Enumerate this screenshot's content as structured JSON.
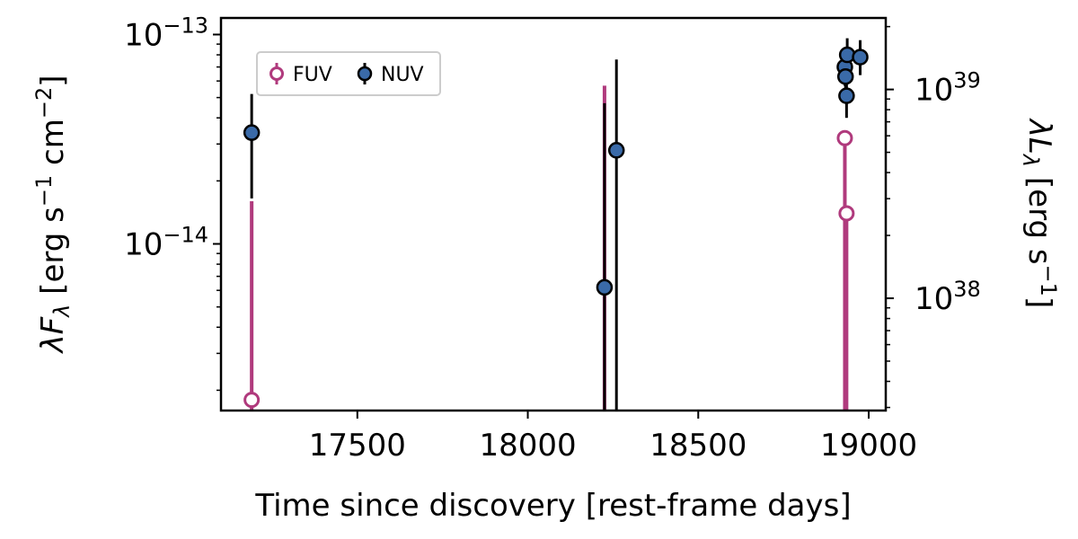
{
  "chart_data": {
    "type": "scatter",
    "xlabel": "Time since discovery [rest-frame days]",
    "ylabel_left": "λF_λ [erg s⁻¹ cm⁻²]",
    "ylabel_right": "λL_λ [erg s⁻¹]",
    "xlim": [
      17100,
      19050
    ],
    "ylim_left": [
      1.6e-15,
      1.2e-13
    ],
    "y_scale": "log",
    "ylim_right_approx": [
      2.9e+37,
      2.2e+39
    ],
    "x_ticks": [
      17500,
      18000,
      18500,
      19000
    ],
    "x_tick_labels": [
      "17500",
      "18000",
      "18500",
      "19000"
    ],
    "y_left_ticks": [
      {
        "base": "10",
        "exp": "−14",
        "value": 1e-14
      },
      {
        "base": "10",
        "exp": "−13",
        "value": 1e-13
      }
    ],
    "y_right_ticks": [
      {
        "base": "10",
        "exp": "38",
        "value": 1e+38
      },
      {
        "base": "10",
        "exp": "39",
        "value": 1e+39
      }
    ],
    "right_axis_conversion_factor": 1.2e+52,
    "grid": false,
    "legend": {
      "position": "top-left",
      "entries": [
        {
          "label": "FUV",
          "marker": "open-circle",
          "color": "#b03a7d"
        },
        {
          "label": "NUV",
          "marker": "filled-circle",
          "color": "#3a6aa8"
        }
      ]
    },
    "series": [
      {
        "name": "FUV",
        "color": "#b03a7d",
        "points": [
          {
            "x": 17190,
            "y": 1.8e-15,
            "y_lo": 1e-16,
            "y_hi": 1.6e-14
          },
          {
            "x": 18930,
            "y": 3.2e-14,
            "y_lo": 1e-16,
            "y_hi": 3.2e-14
          },
          {
            "x": 18935,
            "y": 1.4e-14,
            "y_lo": 1e-16,
            "y_hi": 1.4e-14
          }
        ],
        "upper_error_only": [
          {
            "x": 18225,
            "y_lo": 1e-16,
            "y_hi": 5.7e-14
          }
        ]
      },
      {
        "name": "NUV",
        "color": "#3a6aa8",
        "points": [
          {
            "x": 17190,
            "y": 3.4e-14,
            "y_lo": 1.65e-14,
            "y_hi": 5.2e-14
          },
          {
            "x": 18225,
            "y": 6.2e-15,
            "y_lo": 1e-16,
            "y_hi": 4.7e-14
          },
          {
            "x": 18260,
            "y": 2.8e-14,
            "y_lo": 1e-16,
            "y_hi": 7.6e-14
          },
          {
            "x": 18930,
            "y": 7e-14,
            "y_lo": 5.7e-14,
            "y_hi": 8.2e-14
          },
          {
            "x": 18932,
            "y": 6.3e-14,
            "y_lo": 5e-14,
            "y_hi": 7.6e-14
          },
          {
            "x": 18935,
            "y": 5.1e-14,
            "y_lo": 4e-14,
            "y_hi": 6.2e-14
          },
          {
            "x": 18937,
            "y": 8e-14,
            "y_lo": 6.5e-14,
            "y_hi": 9.6e-14
          },
          {
            "x": 18975,
            "y": 7.8e-14,
            "y_lo": 6.4e-14,
            "y_hi": 9.4e-14
          }
        ]
      }
    ]
  }
}
